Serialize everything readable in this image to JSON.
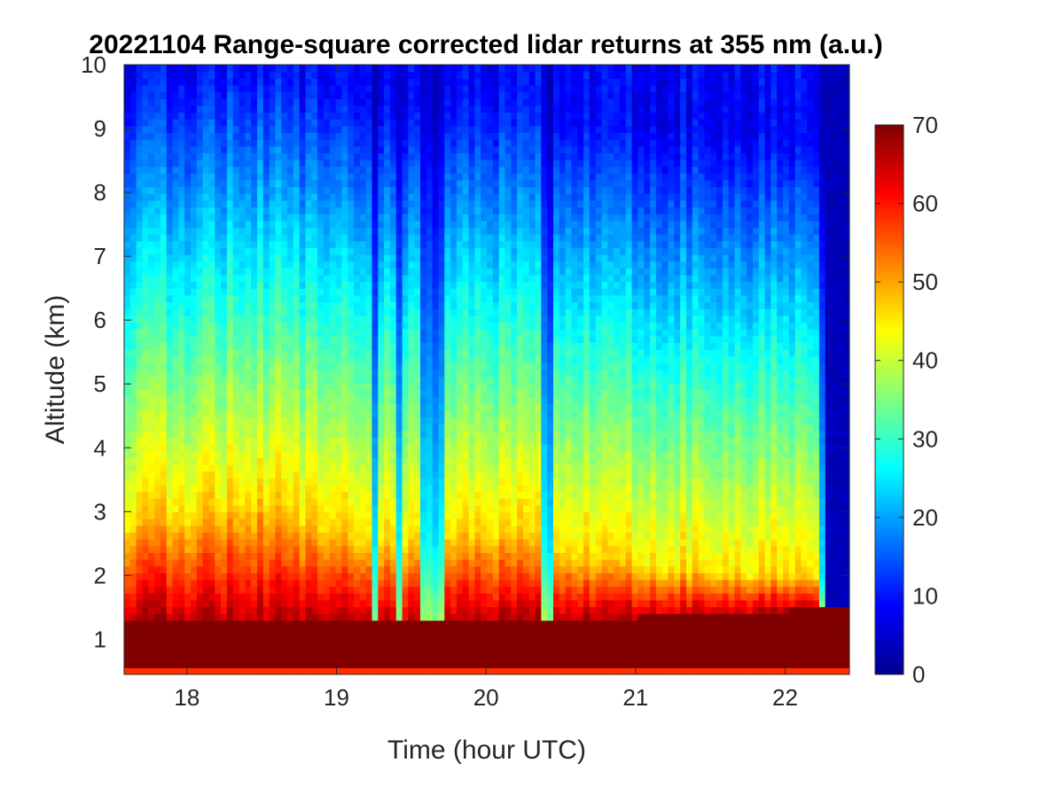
{
  "chart_data": {
    "type": "heatmap",
    "title": "20221104  Range-square corrected lidar returns at 355 nm (a.u.)",
    "xlabel": "Time (hour UTC)",
    "ylabel": "Altitude (km)",
    "xlim": [
      17.58,
      22.43
    ],
    "ylim": [
      0.45,
      10
    ],
    "xticks": [
      18,
      19,
      20,
      21,
      22
    ],
    "yticks": [
      1,
      2,
      3,
      4,
      5,
      6,
      7,
      8,
      9,
      10
    ],
    "colorbar": {
      "colormap": "jet",
      "clim": [
        0,
        70
      ],
      "ticks": [
        0,
        10,
        20,
        30,
        40,
        50,
        60,
        70
      ]
    },
    "grid": false,
    "description_of_field": {
      "saturated_layer_top_km": [
        {
          "t": 17.58,
          "z": 1.35
        },
        {
          "t": 18.2,
          "z": 1.3
        },
        {
          "t": 19.0,
          "z": 1.25
        },
        {
          "t": 19.5,
          "z": 1.25
        },
        {
          "t": 20.0,
          "z": 1.28
        },
        {
          "t": 20.5,
          "z": 1.3
        },
        {
          "t": 21.0,
          "z": 1.35
        },
        {
          "t": 21.5,
          "z": 1.4
        },
        {
          "t": 22.0,
          "z": 1.45
        },
        {
          "t": 22.28,
          "z": 1.5
        }
      ],
      "aerosol_top_km": [
        {
          "t": 17.58,
          "z": 2.9
        },
        {
          "t": 18.5,
          "z": 3.2
        },
        {
          "t": 19.0,
          "z": 2.7
        },
        {
          "t": 19.5,
          "z": 2.5
        },
        {
          "t": 20.0,
          "z": 2.8
        },
        {
          "t": 20.5,
          "z": 2.4
        },
        {
          "t": 21.0,
          "z": 2.2
        },
        {
          "t": 22.0,
          "z": 2.0
        }
      ],
      "low_signal_columns_hour": [
        19.25,
        19.42,
        19.6,
        19.67,
        20.4,
        22.28,
        22.38
      ]
    }
  }
}
